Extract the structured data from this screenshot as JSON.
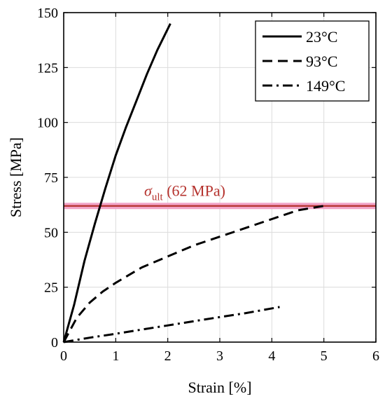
{
  "chart_data": {
    "type": "line",
    "xlabel": "Strain [%]",
    "ylabel": "Stress [MPa]",
    "xlim": [
      0,
      6
    ],
    "ylim": [
      0,
      150
    ],
    "xticks": [
      0,
      1,
      2,
      3,
      4,
      5,
      6
    ],
    "yticks": [
      0,
      25,
      50,
      75,
      100,
      125,
      150
    ],
    "xtick_labels": [
      "0",
      "1",
      "2",
      "3",
      "4",
      "5",
      "6"
    ],
    "ytick_labels": [
      "0",
      "25",
      "50",
      "75",
      "100",
      "125",
      "150"
    ],
    "grid": true,
    "legend_position": "top-right",
    "series": [
      {
        "name": "23°C",
        "style": "solid",
        "color": "#000000",
        "x": [
          0,
          0.2,
          0.4,
          0.6,
          0.8,
          1.0,
          1.2,
          1.4,
          1.6,
          1.8,
          2.05
        ],
        "y": [
          0,
          17,
          37,
          54,
          70,
          85,
          98,
          110,
          122,
          133,
          145
        ]
      },
      {
        "name": "93°C",
        "style": "dashed",
        "color": "#000000",
        "x": [
          0,
          0.25,
          0.5,
          0.75,
          1.0,
          1.5,
          2.0,
          2.5,
          3.0,
          3.5,
          4.0,
          4.5,
          5.0
        ],
        "y": [
          0,
          11,
          18,
          23,
          27,
          34,
          39,
          44,
          48,
          52,
          56,
          60,
          62
        ]
      },
      {
        "name": "149°C",
        "style": "dashdot",
        "color": "#000000",
        "x": [
          0,
          0.5,
          1.0,
          1.5,
          2.0,
          2.5,
          3.0,
          3.5,
          4.15
        ],
        "y": [
          0,
          2,
          3.8,
          5.7,
          7.6,
          9.5,
          11.4,
          13.2,
          16
        ]
      }
    ],
    "reference_line": {
      "y": 62,
      "color": "#b5322d",
      "highlight_color": "#f2a4c8",
      "label_symbol": "σ",
      "label_subscript": "ult",
      "label_text": " (62 MPa)"
    }
  }
}
